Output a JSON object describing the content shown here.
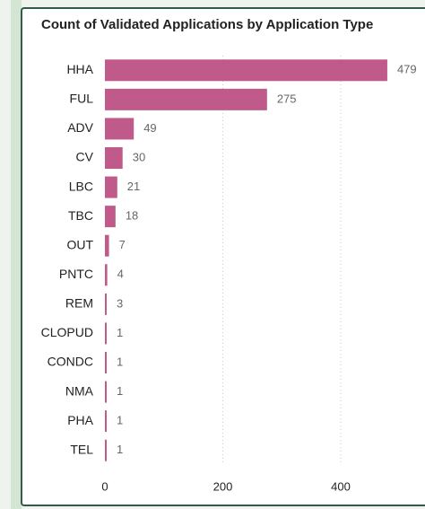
{
  "chart_data": {
    "type": "bar",
    "orientation": "horizontal",
    "title": "Count of Validated Applications by Application Type",
    "categories": [
      "HHA",
      "FUL",
      "ADV",
      "CV",
      "LBC",
      "TBC",
      "OUT",
      "PNTC",
      "REM",
      "CLOPUD",
      "CONDC",
      "NMA",
      "PHA",
      "TEL"
    ],
    "values": [
      479,
      275,
      49,
      30,
      21,
      18,
      7,
      4,
      3,
      1,
      1,
      1,
      1,
      1
    ],
    "color": "#bf5a8a",
    "xlim": [
      0,
      600
    ],
    "xticks": [
      0,
      200,
      400
    ],
    "grid": true
  }
}
